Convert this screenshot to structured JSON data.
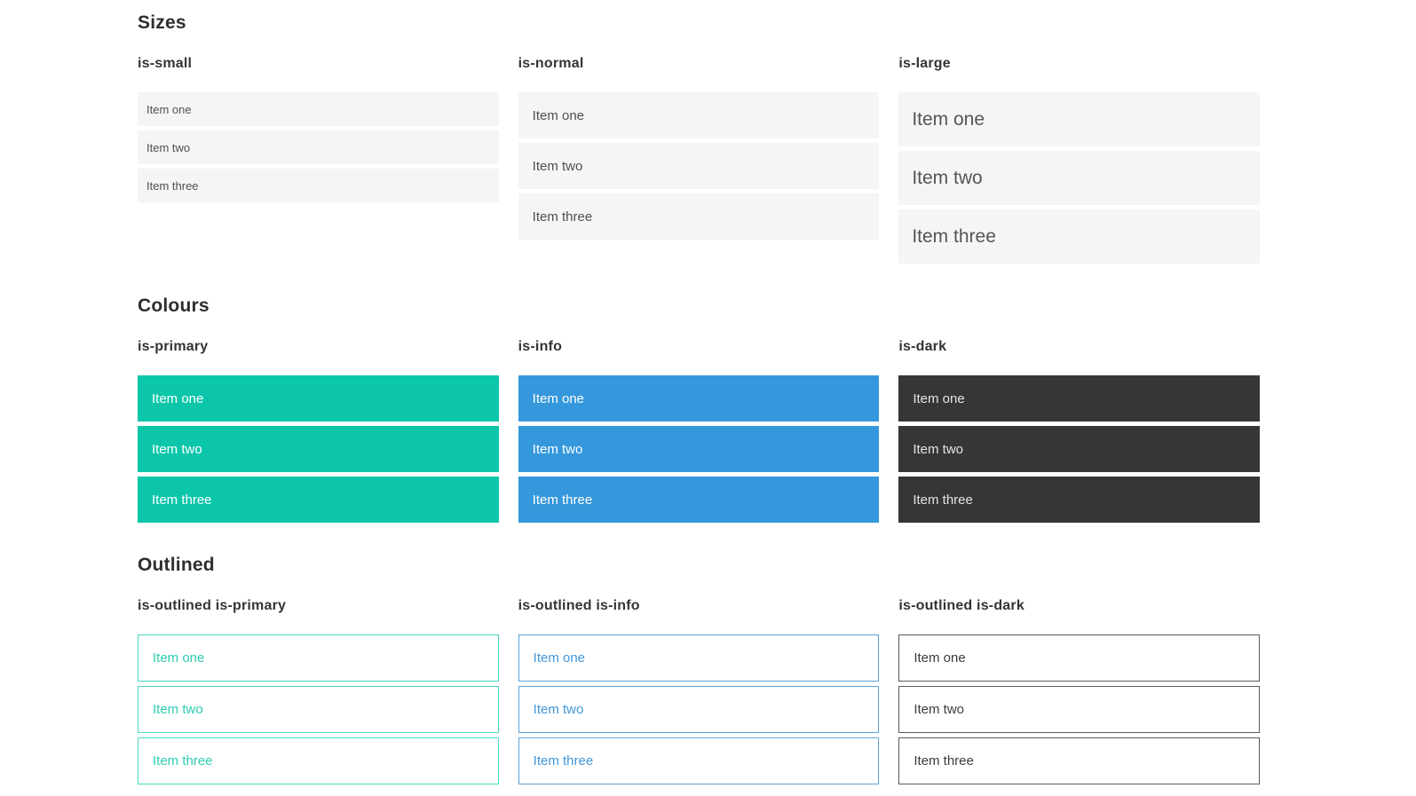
{
  "sections": [
    {
      "title": "Sizes",
      "columns": [
        {
          "label": "is-small",
          "variant": "is-small",
          "items": [
            "Item one",
            "Item two",
            "Item three"
          ]
        },
        {
          "label": "is-normal",
          "variant": "is-normal",
          "items": [
            "Item one",
            "Item two",
            "Item three"
          ]
        },
        {
          "label": "is-large",
          "variant": "is-large",
          "items": [
            "Item one",
            "Item two",
            "Item three"
          ]
        }
      ]
    },
    {
      "title": "Colours",
      "columns": [
        {
          "label": "is-primary",
          "variant": "is-primary",
          "items": [
            "Item one",
            "Item two",
            "Item three"
          ]
        },
        {
          "label": "is-info",
          "variant": "is-info",
          "items": [
            "Item one",
            "Item two",
            "Item three"
          ]
        },
        {
          "label": "is-dark",
          "variant": "is-dark",
          "items": [
            "Item one",
            "Item two",
            "Item three"
          ]
        }
      ]
    },
    {
      "title": "Outlined",
      "columns": [
        {
          "label": "is-outlined is-primary",
          "variant": "is-outlined is-primary",
          "items": [
            "Item one",
            "Item two",
            "Item three"
          ]
        },
        {
          "label": "is-outlined is-info",
          "variant": "is-outlined is-info",
          "items": [
            "Item one",
            "Item two",
            "Item three"
          ]
        },
        {
          "label": "is-outlined is-dark",
          "variant": "is-outlined is-dark",
          "items": [
            "Item one",
            "Item two",
            "Item three"
          ]
        }
      ]
    }
  ],
  "colors": {
    "primary": "#0cc6aa",
    "info": "#3598dc",
    "dark": "#363636",
    "item_background": "#f5f5f5",
    "outlined_primary_border": "#4ad8bf",
    "outlined_info_border": "#5ba4dc",
    "outlined_dark_border": "#58595b",
    "heading_text": "#2e2e2e",
    "item_text": "#4f4f4f"
  }
}
